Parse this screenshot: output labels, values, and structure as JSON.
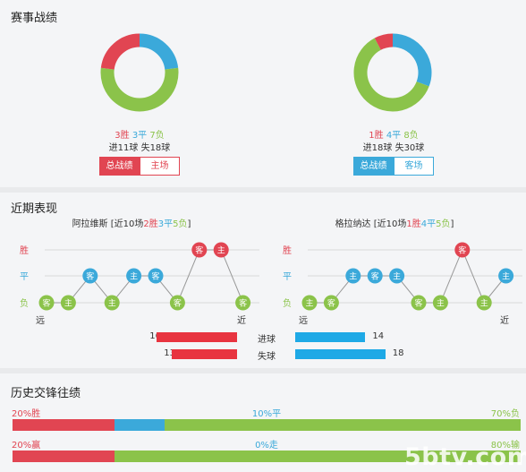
{
  "record": {
    "title": "赛事战绩",
    "left": {
      "wins": "3胜",
      "draws": "3平",
      "losses": "7负",
      "goals": "进11球 失18球",
      "tab_total": "总战绩",
      "tab_venue": "主场",
      "donut": {
        "win": 3,
        "draw": 3,
        "loss": 7
      }
    },
    "right": {
      "wins": "1胜",
      "draws": "4平",
      "losses": "8负",
      "goals": "进18球 失30球",
      "tab_total": "总战绩",
      "tab_venue": "客场",
      "donut": {
        "win": 1,
        "draw": 4,
        "loss": 8
      }
    }
  },
  "form": {
    "title": "近期表现",
    "left": {
      "team": "阿拉维斯",
      "pre": "[近10场",
      "w": "2胜",
      "d": "3平",
      "l": "5负",
      "post": "]",
      "axis": [
        "胜",
        "平",
        "负"
      ],
      "far": "远",
      "near": "近",
      "games": [
        {
          "label": "客",
          "r": "L"
        },
        {
          "label": "主",
          "r": "L"
        },
        {
          "label": "客",
          "r": "D"
        },
        {
          "label": "主",
          "r": "L"
        },
        {
          "label": "主",
          "r": "D"
        },
        {
          "label": "客",
          "r": "D"
        },
        {
          "label": "客",
          "r": "L"
        },
        {
          "label": "客",
          "r": "W"
        },
        {
          "label": "主",
          "r": "W"
        },
        {
          "label": "客",
          "r": "L"
        }
      ]
    },
    "right": {
      "team": "格拉纳达",
      "pre": "[近10场",
      "w": "1胜",
      "d": "4平",
      "l": "5负",
      "post": "]",
      "axis": [
        "胜",
        "平",
        "负"
      ],
      "far": "远",
      "near": "近",
      "games": [
        {
          "label": "主",
          "r": "L"
        },
        {
          "label": "客",
          "r": "L"
        },
        {
          "label": "主",
          "r": "D"
        },
        {
          "label": "客",
          "r": "D"
        },
        {
          "label": "主",
          "r": "D"
        },
        {
          "label": "客",
          "r": "L"
        },
        {
          "label": "主",
          "r": "L"
        },
        {
          "label": "客",
          "r": "W"
        },
        {
          "label": "主",
          "r": "L"
        },
        {
          "label": "主",
          "r": "D"
        }
      ]
    },
    "goals_for_label": "进球",
    "goals_against_label": "失球",
    "left_for": "16",
    "left_against": "13",
    "right_for": "14",
    "right_against": "18",
    "values": {
      "left_for": 16,
      "left_against": 13,
      "right_for": 14,
      "right_against": 18
    }
  },
  "h2h": {
    "title": "历史交锋往绩",
    "row1": {
      "a": "20%胜",
      "b": "10%平",
      "c": "70%负",
      "p": [
        20,
        10,
        70
      ]
    },
    "row2": {
      "a": "20%赢",
      "b": "0%走",
      "c": "80%输",
      "p": [
        20,
        0,
        80
      ]
    }
  },
  "watermark": "5btv.com",
  "colors": {
    "win": "#e14552",
    "draw": "#3ba9da",
    "loss": "#8bc34a"
  }
}
